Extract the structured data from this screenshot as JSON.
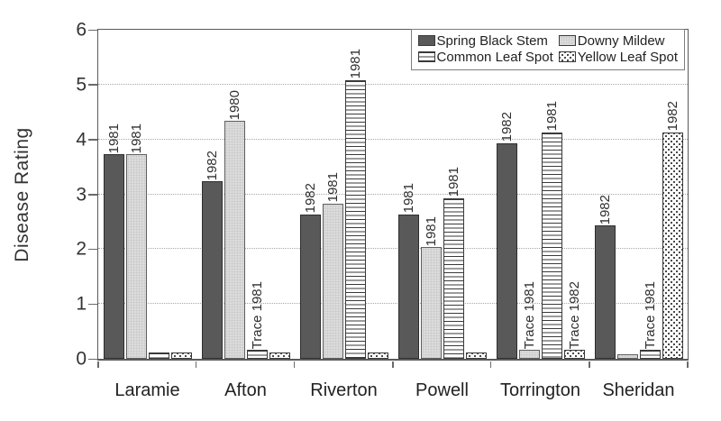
{
  "chart_data": {
    "type": "bar",
    "title": "",
    "xlabel": "",
    "ylabel": "Disease Rating",
    "ylim": [
      0,
      6
    ],
    "yticks": [
      0,
      1,
      2,
      3,
      4,
      5,
      6
    ],
    "grid": "horizontal-dotted",
    "legend_position": "top-right-inside",
    "categories": [
      "Laramie",
      "Afton",
      "Riverton",
      "Powell",
      "Torrington",
      "Sheridan"
    ],
    "series": [
      {
        "name": "Spring Black Stem",
        "pattern": "solid-dark",
        "values": [
          3.7,
          3.2,
          2.6,
          2.6,
          3.9,
          2.4
        ],
        "bar_labels": [
          "1981",
          "1982",
          "1982",
          "1981",
          "1982",
          "1982"
        ]
      },
      {
        "name": "Downy Mildew",
        "pattern": "solid-light",
        "values": [
          3.7,
          4.3,
          2.8,
          2.0,
          0.13,
          0.05
        ],
        "bar_labels": [
          "1981",
          "1980",
          "1981",
          "1981",
          "Trace 1981",
          ""
        ]
      },
      {
        "name": "Common Leaf Spot",
        "pattern": "horizontal-lines",
        "values": [
          0.08,
          0.13,
          5.05,
          2.9,
          4.1,
          0.13
        ],
        "bar_labels": [
          "",
          "Trace 1981",
          "1981",
          "1981",
          "1981",
          "Trace 1981"
        ]
      },
      {
        "name": "Yellow Leaf Spot",
        "pattern": "dots",
        "values": [
          0.08,
          0.08,
          0.08,
          0.08,
          0.13,
          4.1
        ],
        "bar_labels": [
          "",
          "",
          "",
          "",
          "Trace 1982",
          "1982"
        ]
      }
    ]
  },
  "colors": {
    "bar_dark": "#595959",
    "bar_light": "#dcdcdc",
    "pattern_ink": "#3a3a3a",
    "frame": "#5a5a5a",
    "grid": "#a8a8a8",
    "text": "#2b2b2b",
    "background": "#ffffff"
  }
}
